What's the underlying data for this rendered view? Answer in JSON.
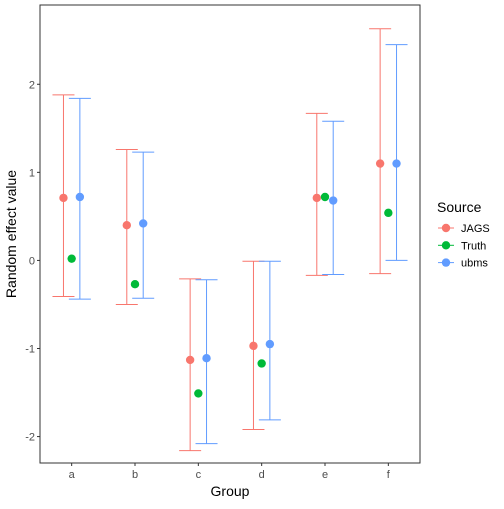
{
  "chart_data": {
    "type": "scatter",
    "subtype": "point-with-errorbars",
    "title": "",
    "xlabel": "Group",
    "ylabel": "Random effect value",
    "categories": [
      "a",
      "b",
      "c",
      "d",
      "e",
      "f"
    ],
    "ylim": [
      -2.3,
      2.9
    ],
    "yticks": [
      -2,
      -1,
      0,
      1,
      2
    ],
    "yticklabels": [
      "-2",
      "-1",
      "0",
      "1",
      "2"
    ],
    "grid": false,
    "legend": {
      "title": "Source",
      "position": "right"
    },
    "series": [
      {
        "name": "JAGS",
        "color": "#F8766D",
        "values": [
          0.71,
          0.4,
          -1.13,
          -0.97,
          0.71,
          1.1
        ],
        "lower": [
          -0.41,
          -0.5,
          -2.16,
          -1.92,
          -0.17,
          -0.15
        ],
        "upper": [
          1.88,
          1.26,
          -0.21,
          -0.01,
          1.67,
          2.63
        ]
      },
      {
        "name": "Truth",
        "color": "#00BA38",
        "values": [
          0.02,
          -0.27,
          -1.51,
          -1.17,
          0.72,
          0.54
        ]
      },
      {
        "name": "ubms",
        "color": "#619CFF",
        "values": [
          0.72,
          0.42,
          -1.11,
          -0.95,
          0.68,
          1.1
        ],
        "lower": [
          -0.44,
          -0.43,
          -2.08,
          -1.81,
          -0.16,
          0.0
        ],
        "upper": [
          1.84,
          1.23,
          -0.22,
          -0.01,
          1.58,
          2.45
        ]
      }
    ]
  }
}
